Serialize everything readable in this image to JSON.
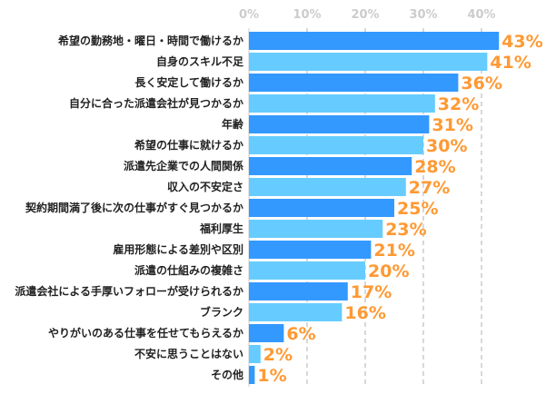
{
  "chart_data": {
    "type": "bar",
    "orientation": "horizontal",
    "categories": [
      "希望の勤務地・曜日・時間で働けるか",
      "自身のスキル不足",
      "長く安定して働けるか",
      "自分に合った派遣会社が見つかるか",
      "年齢",
      "希望の仕事に就けるか",
      "派遣先企業での人間関係",
      "収入の不安定さ",
      "契約期間満了後に次の仕事がすぐ見つかるか",
      "福利厚生",
      "雇用形態による差別や区別",
      "派遣の仕組みの複雑さ",
      "派遣会社による手厚いフォローが受けられるか",
      "ブランク",
      "やりがいのある仕事を任せてもらえるか",
      "不安に思うことはない",
      "その他"
    ],
    "values": [
      43,
      41,
      36,
      32,
      31,
      30,
      28,
      27,
      25,
      23,
      21,
      20,
      17,
      16,
      6,
      2,
      1
    ],
    "value_labels": [
      "43%",
      "41%",
      "36%",
      "32%",
      "31%",
      "30%",
      "28%",
      "27%",
      "25%",
      "23%",
      "21%",
      "20%",
      "17%",
      "16%",
      "6%",
      "2%",
      "1%"
    ],
    "xticks": [
      "0%",
      "10%",
      "20%",
      "30%",
      "40%"
    ],
    "xlim": [
      0,
      50
    ],
    "grid": true,
    "axis_position": "top",
    "colors": {
      "bar_dark": "#3399FF",
      "bar_light": "#66CCFF",
      "value_label": "#FF9933",
      "grid": "#cccccc"
    }
  }
}
